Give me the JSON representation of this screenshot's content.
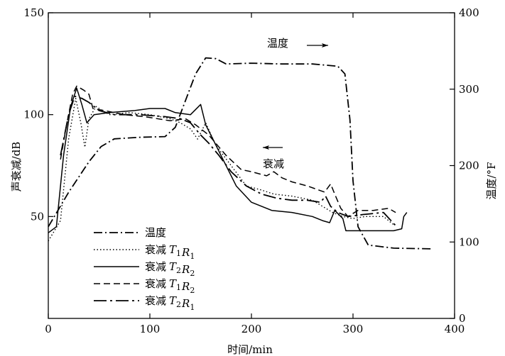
{
  "chart_data": {
    "type": "line",
    "xlabel": "时间/min",
    "ylabel_left": "声衰减/dB",
    "ylabel_right": "温度/°F",
    "xlim": [
      0,
      400
    ],
    "ylim_left": [
      0,
      150
    ],
    "ylim_right": [
      0,
      400
    ],
    "x_ticks": [
      "0",
      "100",
      "200",
      "300",
      "400"
    ],
    "y_left_ticks": [
      "50",
      "100",
      "150"
    ],
    "y_right_ticks": [
      "0",
      "100",
      "200",
      "300",
      "400"
    ],
    "grid": false,
    "legend_position": "bottom-left",
    "annotations": [
      {
        "text": "温度",
        "arrow": "right"
      },
      {
        "text": "衰减",
        "arrow": "left"
      }
    ],
    "legend": [
      {
        "label": "温度",
        "style": "dash-dot"
      },
      {
        "label": "衰减",
        "math": [
          [
            "T",
            "1"
          ],
          [
            "R",
            "1"
          ]
        ],
        "style": "dotted"
      },
      {
        "label": "衰减",
        "math": [
          [
            "T",
            "2"
          ],
          [
            "R",
            "2"
          ]
        ],
        "style": "solid"
      },
      {
        "label": "衰减",
        "math": [
          [
            "T",
            "1"
          ],
          [
            "R",
            "2"
          ]
        ],
        "style": "dashed"
      },
      {
        "label": "衰减",
        "math": [
          [
            "T",
            "2"
          ],
          [
            "R",
            "1"
          ]
        ],
        "style": "long-dash-dot"
      }
    ],
    "series": [
      {
        "name": "温度",
        "axis": "right",
        "style": "dash-dot",
        "points": [
          [
            0,
            120
          ],
          [
            20,
            165
          ],
          [
            40,
            205
          ],
          [
            52,
            225
          ],
          [
            65,
            235
          ],
          [
            90,
            237
          ],
          [
            115,
            238
          ],
          [
            125,
            250
          ],
          [
            135,
            285
          ],
          [
            145,
            320
          ],
          [
            155,
            341
          ],
          [
            165,
            340
          ],
          [
            175,
            333
          ],
          [
            200,
            334
          ],
          [
            230,
            333
          ],
          [
            260,
            333
          ],
          [
            285,
            330
          ],
          [
            292,
            320
          ],
          [
            297,
            260
          ],
          [
            300,
            180
          ],
          [
            305,
            120
          ],
          [
            315,
            96
          ],
          [
            340,
            92
          ],
          [
            377,
            91
          ]
        ]
      },
      {
        "name": "衰减 T1R1",
        "axis": "left",
        "style": "dotted",
        "points": [
          [
            0,
            38
          ],
          [
            12,
            48
          ],
          [
            20,
            88
          ],
          [
            27,
            108
          ],
          [
            32,
            96
          ],
          [
            36,
            84
          ],
          [
            40,
            98
          ],
          [
            47,
            104
          ],
          [
            60,
            100
          ],
          [
            80,
            101
          ],
          [
            100,
            100
          ],
          [
            120,
            98
          ],
          [
            130,
            96
          ],
          [
            140,
            93
          ],
          [
            147,
            88
          ],
          [
            150,
            91
          ],
          [
            155,
            96
          ],
          [
            165,
            85
          ],
          [
            180,
            75
          ],
          [
            195,
            65
          ],
          [
            210,
            63
          ],
          [
            222,
            61
          ],
          [
            240,
            60
          ],
          [
            260,
            58
          ],
          [
            270,
            55
          ],
          [
            280,
            52
          ],
          [
            290,
            50
          ],
          [
            300,
            49
          ],
          [
            312,
            50
          ],
          [
            330,
            50
          ],
          [
            340,
            46
          ]
        ]
      },
      {
        "name": "衰减 T2R2",
        "axis": "left",
        "style": "solid",
        "points": [
          [
            0,
            42
          ],
          [
            8,
            45
          ],
          [
            15,
            80
          ],
          [
            22,
            104
          ],
          [
            28,
            113
          ],
          [
            33,
            105
          ],
          [
            38,
            96
          ],
          [
            45,
            100
          ],
          [
            60,
            101
          ],
          [
            85,
            102
          ],
          [
            100,
            103
          ],
          [
            115,
            103
          ],
          [
            125,
            101
          ],
          [
            140,
            100
          ],
          [
            150,
            105
          ],
          [
            155,
            95
          ],
          [
            162,
            88
          ],
          [
            172,
            78
          ],
          [
            185,
            65
          ],
          [
            200,
            57
          ],
          [
            220,
            53
          ],
          [
            240,
            52
          ],
          [
            260,
            50
          ],
          [
            270,
            48
          ],
          [
            277,
            47
          ],
          [
            282,
            53
          ],
          [
            290,
            49
          ],
          [
            293,
            43
          ],
          [
            320,
            43
          ],
          [
            340,
            43
          ],
          [
            348,
            44
          ],
          [
            350,
            50
          ],
          [
            353,
            52
          ]
        ]
      },
      {
        "name": "衰减 T1R2",
        "axis": "left",
        "style": "dashed",
        "points": [
          [
            12,
            78
          ],
          [
            18,
            95
          ],
          [
            24,
            110
          ],
          [
            28,
            114
          ],
          [
            35,
            112
          ],
          [
            40,
            110
          ],
          [
            44,
            103
          ],
          [
            55,
            102
          ],
          [
            75,
            100
          ],
          [
            95,
            99
          ],
          [
            120,
            97
          ],
          [
            135,
            98
          ],
          [
            145,
            95
          ],
          [
            158,
            90
          ],
          [
            175,
            80
          ],
          [
            190,
            73
          ],
          [
            200,
            72
          ],
          [
            215,
            70
          ],
          [
            222,
            72
          ],
          [
            230,
            69
          ],
          [
            240,
            67
          ],
          [
            255,
            65
          ],
          [
            272,
            62
          ],
          [
            278,
            66
          ],
          [
            282,
            61
          ],
          [
            288,
            54
          ],
          [
            295,
            50
          ],
          [
            305,
            53
          ],
          [
            320,
            53
          ],
          [
            335,
            54
          ],
          [
            342,
            52
          ]
        ]
      },
      {
        "name": "衰减 T2R1",
        "axis": "left",
        "style": "long-dash-dot",
        "points": [
          [
            12,
            80
          ],
          [
            20,
            100
          ],
          [
            26,
            109
          ],
          [
            33,
            108
          ],
          [
            40,
            106
          ],
          [
            50,
            102
          ],
          [
            65,
            100
          ],
          [
            90,
            100
          ],
          [
            115,
            99
          ],
          [
            130,
            98
          ],
          [
            140,
            96
          ],
          [
            150,
            90
          ],
          [
            158,
            86
          ],
          [
            168,
            80
          ],
          [
            180,
            72
          ],
          [
            195,
            65
          ],
          [
            210,
            61
          ],
          [
            225,
            59
          ],
          [
            240,
            58
          ],
          [
            255,
            58
          ],
          [
            268,
            57
          ],
          [
            273,
            60
          ],
          [
            278,
            55
          ],
          [
            285,
            52
          ],
          [
            295,
            50
          ],
          [
            310,
            51
          ],
          [
            330,
            52
          ],
          [
            343,
            45
          ]
        ]
      }
    ]
  }
}
